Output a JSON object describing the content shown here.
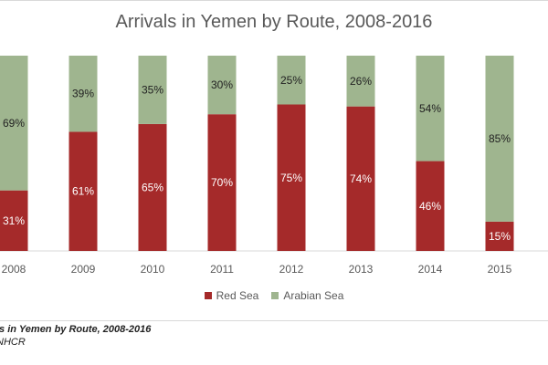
{
  "chart_data": {
    "type": "bar",
    "stacked": true,
    "title": "Arrivals in Yemen by Route, 2008-2016",
    "categories": [
      "2008",
      "2009",
      "2010",
      "2011",
      "2012",
      "2013",
      "2014",
      "2015"
    ],
    "series": [
      {
        "name": "Red Sea",
        "color": "#a52a2a",
        "values": [
          31,
          61,
          65,
          70,
          75,
          74,
          46,
          15
        ],
        "labels": [
          "31%",
          "61%",
          "65%",
          "70%",
          "75%",
          "74%",
          "46%",
          "15%"
        ]
      },
      {
        "name": "Arabian Sea",
        "color": "#9fb58f",
        "values": [
          69,
          39,
          35,
          30,
          25,
          26,
          54,
          85
        ],
        "labels": [
          "69%",
          "39%",
          "35%",
          "30%",
          "25%",
          "26%",
          "54%",
          "85%"
        ]
      }
    ],
    "ylim": [
      0,
      100
    ],
    "grid": false,
    "legend": "bottom"
  },
  "caption": {
    "title": "ls in Yemen by Route, 2008-2016",
    "source": "NHCR"
  }
}
